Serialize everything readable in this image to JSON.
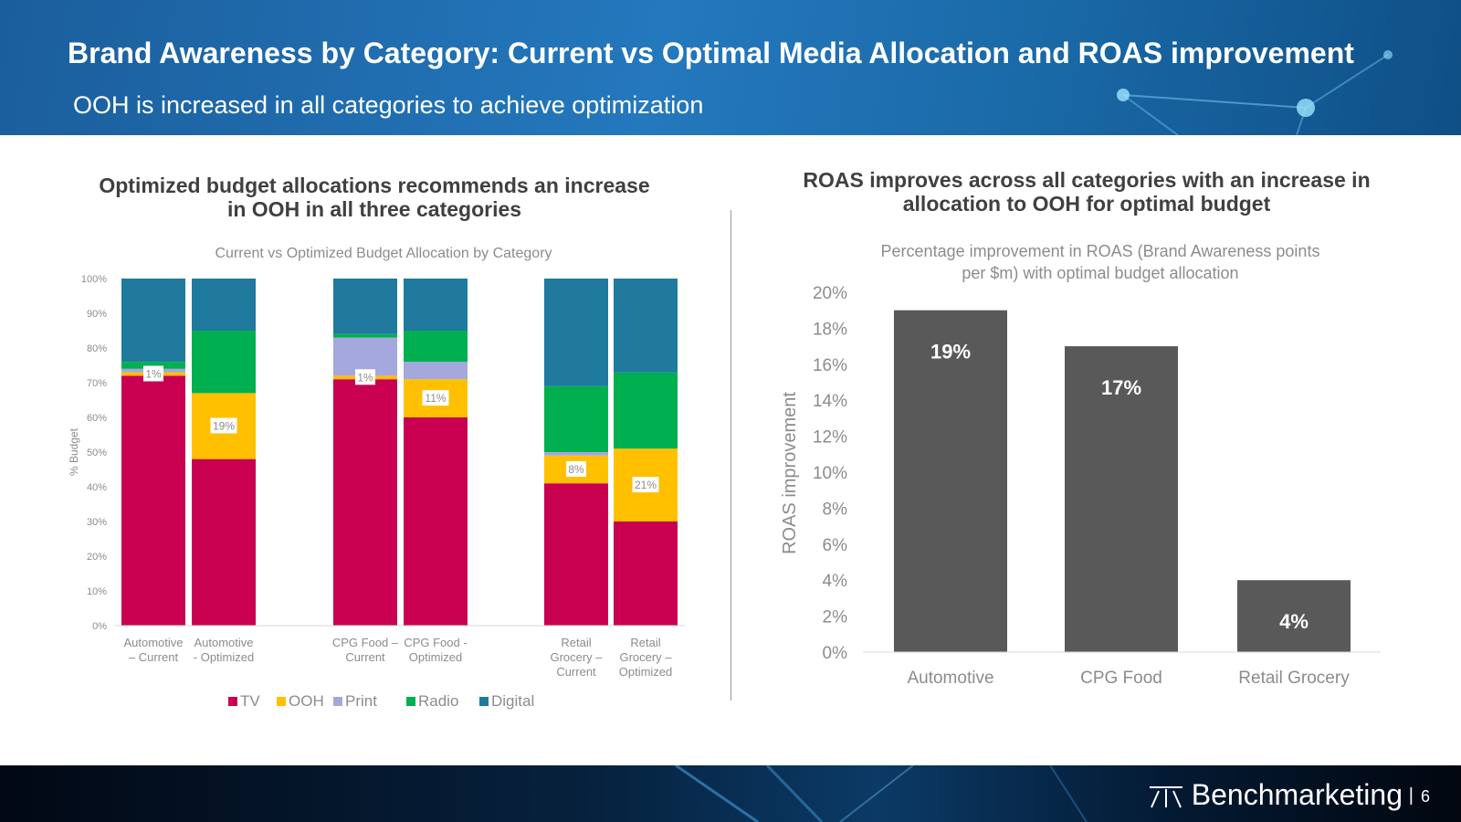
{
  "header": {
    "title": "Brand Awareness by Category: Current vs Optimal Media Allocation and ROAS improvement",
    "subtitle": "OOH is increased in all categories to achieve optimization"
  },
  "left_panel": {
    "heading_line1": "Optimized budget allocations recommends an increase",
    "heading_line2": "in OOH in all three categories"
  },
  "right_panel": {
    "heading_line1": "ROAS improves across all categories with an increase in",
    "heading_line2": "allocation to OOH for optimal budget"
  },
  "footer": {
    "brand": "Benchmarketing",
    "separator": "|",
    "page": "6"
  },
  "colors": {
    "TV": "#c8004f",
    "OOH": "#ffc000",
    "Print": "#a5a8dc",
    "Radio": "#00b050",
    "Digital": "#1f7a9e",
    "roas_bar": "#595959"
  },
  "chart_data": [
    {
      "type": "bar",
      "stacked": true,
      "title": "Current vs Optimized Budget Allocation by Category",
      "ylabel": "% Budget",
      "ylim": [
        0,
        100
      ],
      "yticks": [
        "0%",
        "10%",
        "20%",
        "30%",
        "40%",
        "50%",
        "60%",
        "70%",
        "80%",
        "90%",
        "100%"
      ],
      "categories": [
        [
          "Automotive",
          "– Current"
        ],
        [
          "Automotive",
          "- Optimized"
        ],
        [
          "CPG Food –",
          "Current"
        ],
        [
          "CPG Food -",
          "Optimized"
        ],
        [
          "Retail",
          "Grocery –",
          "Current"
        ],
        [
          "Retail",
          "Grocery –",
          "Optimized"
        ]
      ],
      "series": [
        {
          "name": "TV",
          "values": [
            72,
            48,
            71,
            60,
            41,
            30
          ]
        },
        {
          "name": "OOH",
          "values": [
            1,
            19,
            1,
            11,
            8,
            21
          ]
        },
        {
          "name": "Print",
          "values": [
            1,
            0,
            11,
            5,
            1,
            0
          ]
        },
        {
          "name": "Radio",
          "values": [
            2,
            18,
            1,
            9,
            19,
            22
          ]
        },
        {
          "name": "Digital",
          "values": [
            24,
            15,
            16,
            15,
            31,
            27
          ]
        }
      ],
      "data_labels": [
        "1%",
        "19%",
        "1%",
        "11%",
        "8%",
        "21%"
      ],
      "legend": "bottom",
      "grid": false
    },
    {
      "type": "bar",
      "title": "Percentage improvement in ROAS (Brand Awareness points per $m) with optimal budget allocation",
      "title_lines": [
        "Percentage improvement in ROAS (Brand Awareness points",
        "per $m) with optimal budget allocation"
      ],
      "ylabel": "ROAS improvement",
      "ylim": [
        0,
        20
      ],
      "yticks": [
        "0%",
        "2%",
        "4%",
        "6%",
        "8%",
        "10%",
        "12%",
        "14%",
        "16%",
        "18%",
        "20%"
      ],
      "categories": [
        "Automotive",
        "CPG Food",
        "Retail Grocery"
      ],
      "values": [
        19,
        17,
        4
      ],
      "data_labels": [
        "19%",
        "17%",
        "4%"
      ],
      "grid": false
    }
  ]
}
